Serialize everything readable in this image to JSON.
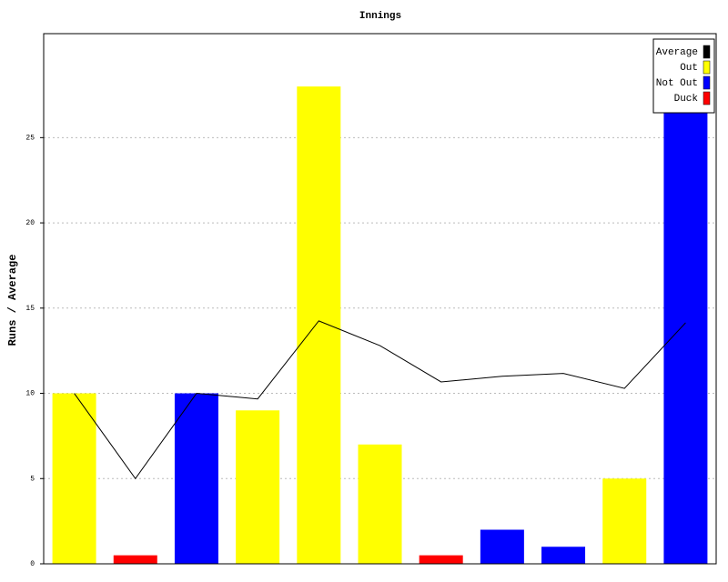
{
  "chart_data": {
    "type": "bar",
    "title": "Innings",
    "y_label": "Runs / Average",
    "categories": [
      null,
      null,
      null,
      null,
      null,
      null,
      null,
      null,
      null,
      null,
      null
    ],
    "series": [
      {
        "name": "Average",
        "type": "line",
        "color": "#000000",
        "values": [
          10,
          5,
          10,
          9.67,
          14.25,
          12.8,
          10.67,
          11,
          11.17,
          10.29,
          14.14
        ]
      },
      {
        "name": "Out",
        "color": "#ffff00",
        "values": [
          10,
          null,
          null,
          9,
          28,
          7,
          null,
          null,
          null,
          5,
          null
        ]
      },
      {
        "name": "Not Out",
        "color": "#0000ff",
        "values": [
          null,
          null,
          10,
          null,
          null,
          null,
          null,
          2,
          1,
          null,
          27
        ]
      },
      {
        "name": "Duck",
        "color": "#ff0000",
        "values": [
          null,
          0.5,
          null,
          null,
          null,
          null,
          0.5,
          null,
          null,
          null,
          null
        ]
      }
    ],
    "ylim": [
      0,
      31.1
    ],
    "yticks": [
      0,
      5,
      10,
      15,
      20,
      25
    ],
    "grid": true,
    "legend": "top-right"
  }
}
